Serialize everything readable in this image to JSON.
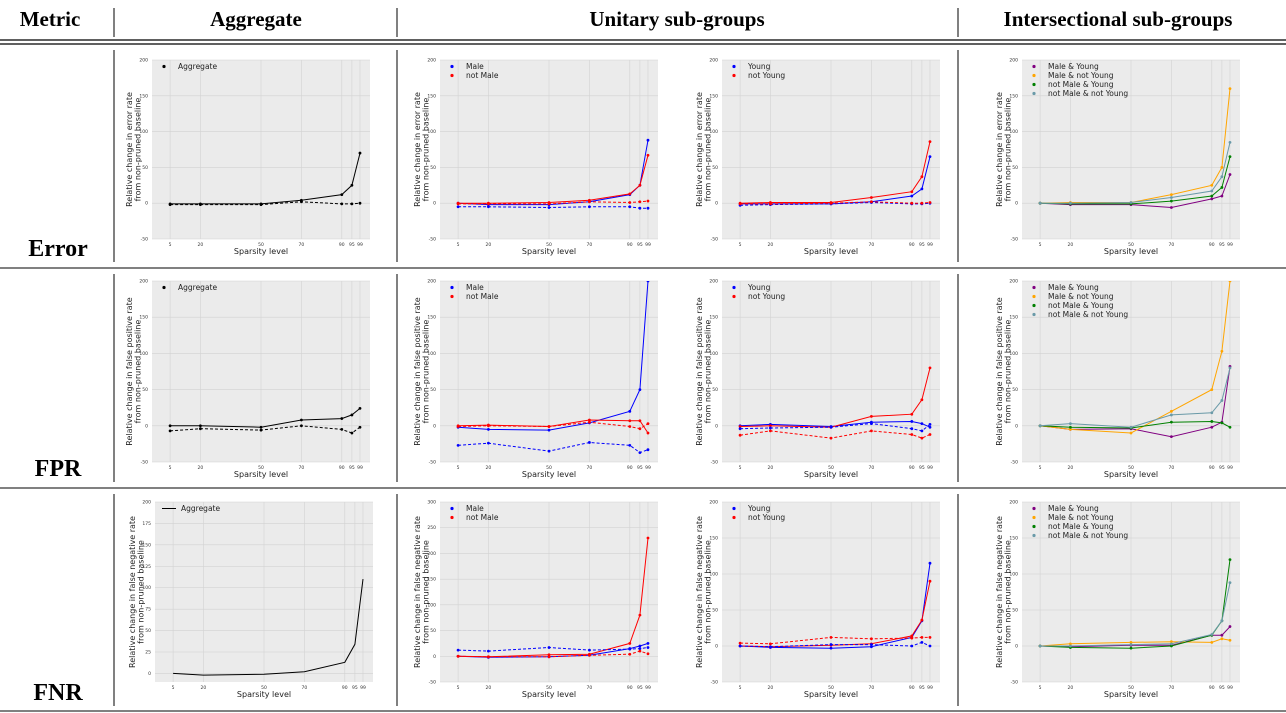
{
  "table": {
    "headers": [
      "Metric",
      "Aggregate",
      "Unitary sub-groups",
      "Intersectional sub-groups"
    ],
    "rows": [
      "Error",
      "FPR",
      "FNR"
    ]
  },
  "colors": {
    "Aggregate": "#000000",
    "Male": "#0000ff",
    "not Male": "#ff0000",
    "Young": "#0000ff",
    "not Young": "#ff0000",
    "Male & Young": "#800080",
    "Male & not Young": "#ffa500",
    "not Male & Young": "#008000",
    "not Male & not Young": "#6a9aa8"
  },
  "chart_data": [
    {
      "id": "error-aggregate",
      "type": "line",
      "xlabel": "Sparsity level",
      "ylabel": [
        "Relative change in error rate",
        "from non-pruned baseline"
      ],
      "x": [
        5,
        20,
        50,
        70,
        90,
        95,
        99
      ],
      "ylim": [
        -50,
        200
      ],
      "yticks": [
        -50,
        0,
        50,
        100,
        150,
        200
      ],
      "legend": "top-left",
      "grid": true,
      "series": [
        {
          "name": "Aggregate",
          "values": [
            -1,
            -1,
            -1,
            4,
            12,
            25,
            70
          ],
          "dashed": false,
          "marker": true,
          "legend": true
        },
        {
          "name": "Aggregate",
          "values": [
            -2,
            -2,
            -2,
            2,
            -1,
            -1,
            0
          ],
          "dashed": true,
          "marker": true,
          "legend": false
        }
      ]
    },
    {
      "id": "error-male",
      "type": "line",
      "xlabel": "Sparsity level",
      "ylabel": [
        "Relative change in error rate",
        "from non-pruned baseline"
      ],
      "x": [
        5,
        20,
        50,
        70,
        90,
        95,
        99
      ],
      "ylim": [
        -50,
        200
      ],
      "yticks": [
        -50,
        0,
        50,
        100,
        150,
        200
      ],
      "legend": "top-left",
      "grid": true,
      "series": [
        {
          "name": "Male",
          "values": [
            0,
            -2,
            -2,
            2,
            12,
            25,
            88
          ],
          "dashed": false,
          "marker": true,
          "legend": true
        },
        {
          "name": "not Male",
          "values": [
            0,
            0,
            1,
            4,
            13,
            25,
            67
          ],
          "dashed": false,
          "marker": true,
          "legend": true
        },
        {
          "name": "Male",
          "values": [
            -5,
            -5,
            -6,
            -5,
            -5,
            -7,
            -7
          ],
          "dashed": true,
          "marker": true,
          "legend": false
        },
        {
          "name": "not Male",
          "values": [
            -1,
            -1,
            -1,
            2,
            1,
            2,
            3
          ],
          "dashed": true,
          "marker": true,
          "legend": false
        }
      ]
    },
    {
      "id": "error-young",
      "type": "line",
      "xlabel": "Sparsity level",
      "ylabel": [
        "Relative change in error rate",
        "from non-pruned baseline"
      ],
      "x": [
        5,
        20,
        50,
        70,
        90,
        95,
        99
      ],
      "ylim": [
        -50,
        200
      ],
      "yticks": [
        -50,
        0,
        50,
        100,
        150,
        200
      ],
      "legend": "top-left",
      "grid": true,
      "series": [
        {
          "name": "Young",
          "values": [
            -1,
            -1,
            -1,
            2,
            10,
            20,
            65
          ],
          "dashed": false,
          "marker": true,
          "legend": true
        },
        {
          "name": "not Young",
          "values": [
            0,
            1,
            1,
            8,
            16,
            37,
            86
          ],
          "dashed": false,
          "marker": true,
          "legend": true
        },
        {
          "name": "Young",
          "values": [
            -3,
            -2,
            -1,
            1,
            -1,
            -1,
            0
          ],
          "dashed": true,
          "marker": true,
          "legend": false
        },
        {
          "name": "not Young",
          "values": [
            -1,
            -1,
            0,
            2,
            0,
            0,
            1
          ],
          "dashed": true,
          "marker": true,
          "legend": false
        }
      ]
    },
    {
      "id": "error-intersectional",
      "type": "line",
      "xlabel": "Sparsity level",
      "ylabel": [
        "Relative change in error rate",
        "from non-pruned baseline"
      ],
      "x": [
        5,
        20,
        50,
        70,
        90,
        95,
        99
      ],
      "ylim": [
        -50,
        200
      ],
      "yticks": [
        -50,
        0,
        50,
        100,
        150,
        200
      ],
      "legend": "top-left",
      "grid": true,
      "series": [
        {
          "name": "Male & Young",
          "values": [
            0,
            -2,
            -2,
            -6,
            6,
            10,
            40
          ],
          "dashed": false,
          "marker": true,
          "legend": true
        },
        {
          "name": "Male & not Young",
          "values": [
            0,
            1,
            1,
            12,
            25,
            50,
            160
          ],
          "dashed": false,
          "marker": true,
          "legend": true
        },
        {
          "name": "not Male & Young",
          "values": [
            0,
            -1,
            -1,
            3,
            10,
            22,
            65
          ],
          "dashed": false,
          "marker": true,
          "legend": true
        },
        {
          "name": "not Male & not Young",
          "values": [
            0,
            0,
            1,
            8,
            17,
            37,
            85
          ],
          "dashed": false,
          "marker": true,
          "legend": true
        }
      ]
    },
    {
      "id": "fpr-aggregate",
      "type": "line",
      "xlabel": "Sparsity level",
      "ylabel": [
        "Relative change in false positive rate",
        "from non-pruned baseline"
      ],
      "x": [
        5,
        20,
        50,
        70,
        90,
        95,
        99
      ],
      "ylim": [
        -50,
        200
      ],
      "yticks": [
        -50,
        0,
        50,
        100,
        150,
        200
      ],
      "legend": "top-left",
      "grid": true,
      "series": [
        {
          "name": "Aggregate",
          "values": [
            0,
            0,
            -2,
            8,
            10,
            15,
            24
          ],
          "dashed": false,
          "marker": true,
          "legend": true
        },
        {
          "name": "Aggregate",
          "values": [
            -7,
            -4,
            -6,
            0,
            -5,
            -10,
            -2
          ],
          "dashed": true,
          "marker": true,
          "legend": false
        }
      ]
    },
    {
      "id": "fpr-male",
      "type": "line",
      "xlabel": "Sparsity level",
      "ylabel": [
        "Relative change in false positive rate",
        "from non-pruned baseline"
      ],
      "x": [
        5,
        20,
        50,
        70,
        90,
        95,
        99
      ],
      "ylim": [
        -50,
        200
      ],
      "yticks": [
        -50,
        0,
        50,
        100,
        150,
        200
      ],
      "legend": "top-left",
      "grid": true,
      "series": [
        {
          "name": "Male",
          "values": [
            -2,
            -5,
            -6,
            4,
            20,
            50,
            200
          ],
          "dashed": false,
          "marker": true,
          "legend": true
        },
        {
          "name": "not Male",
          "values": [
            0,
            1,
            -1,
            8,
            7,
            7,
            -10
          ],
          "dashed": false,
          "marker": true,
          "legend": true
        },
        {
          "name": "Male",
          "values": [
            -27,
            -24,
            -35,
            -23,
            -27,
            -37,
            -33
          ],
          "dashed": true,
          "marker": true,
          "legend": false
        },
        {
          "name": "not Male",
          "values": [
            -1,
            0,
            -1,
            5,
            -1,
            -4,
            3
          ],
          "dashed": true,
          "marker": true,
          "legend": false
        }
      ]
    },
    {
      "id": "fpr-young",
      "type": "line",
      "xlabel": "Sparsity level",
      "ylabel": [
        "Relative change in false positive rate",
        "from non-pruned baseline"
      ],
      "x": [
        5,
        20,
        50,
        70,
        90,
        95,
        99
      ],
      "ylim": [
        -50,
        200
      ],
      "yticks": [
        -50,
        0,
        50,
        100,
        150,
        200
      ],
      "legend": "top-left",
      "grid": true,
      "series": [
        {
          "name": "Young",
          "values": [
            0,
            2,
            -1,
            5,
            6,
            3,
            -2
          ],
          "dashed": false,
          "marker": true,
          "legend": true
        },
        {
          "name": "not Young",
          "values": [
            -1,
            0,
            -2,
            13,
            16,
            36,
            80
          ],
          "dashed": false,
          "marker": true,
          "legend": true
        },
        {
          "name": "Young",
          "values": [
            -4,
            -3,
            -2,
            3,
            -4,
            -7,
            2
          ],
          "dashed": true,
          "marker": true,
          "legend": false
        },
        {
          "name": "not Young",
          "values": [
            -13,
            -7,
            -17,
            -7,
            -12,
            -17,
            -12
          ],
          "dashed": true,
          "marker": true,
          "legend": false
        }
      ]
    },
    {
      "id": "fpr-intersectional",
      "type": "line",
      "xlabel": "Sparsity level",
      "ylabel": [
        "Relative change in false positive rate",
        "from non-pruned baseline"
      ],
      "x": [
        5,
        20,
        50,
        70,
        90,
        95,
        99
      ],
      "ylim": [
        -50,
        200
      ],
      "yticks": [
        -50,
        0,
        50,
        100,
        150,
        200
      ],
      "legend": "top-left",
      "grid": true,
      "series": [
        {
          "name": "Male & Young",
          "values": [
            0,
            -5,
            -4,
            -15,
            -2,
            5,
            82
          ],
          "dashed": false,
          "marker": true,
          "legend": true
        },
        {
          "name": "Male & not Young",
          "values": [
            0,
            -5,
            -10,
            20,
            50,
            103,
            200
          ],
          "dashed": false,
          "marker": true,
          "legend": true
        },
        {
          "name": "not Male & Young",
          "values": [
            0,
            -2,
            -3,
            5,
            6,
            4,
            -2
          ],
          "dashed": false,
          "marker": true,
          "legend": true
        },
        {
          "name": "not Male & not Young",
          "values": [
            0,
            3,
            -2,
            15,
            18,
            35,
            80
          ],
          "dashed": false,
          "marker": true,
          "legend": true
        }
      ]
    },
    {
      "id": "fnr-aggregate",
      "type": "line",
      "xlabel": "Sparsity level",
      "ylabel": [
        "Relative change in false negative rate",
        "from non-pruned baseline"
      ],
      "x": [
        5,
        20,
        50,
        70,
        90,
        95,
        99
      ],
      "ylim": [
        -10,
        200
      ],
      "yticks": [
        0,
        25,
        50,
        75,
        100,
        125,
        150,
        175,
        200
      ],
      "legend": "top-left",
      "grid": true,
      "series": [
        {
          "name": "Aggregate",
          "values": [
            0,
            -2,
            -1,
            2,
            13,
            34,
            110
          ],
          "dashed": false,
          "marker": false,
          "legend": true
        }
      ]
    },
    {
      "id": "fnr-male",
      "type": "line",
      "xlabel": "Sparsity level",
      "ylabel": [
        "Relative change in false negative rate",
        "from non-pruned baseline"
      ],
      "x": [
        5,
        20,
        50,
        70,
        90,
        95,
        99
      ],
      "ylim": [
        -50,
        300
      ],
      "yticks": [
        -50,
        0,
        50,
        100,
        150,
        200,
        250,
        300
      ],
      "legend": "top-left",
      "grid": true,
      "series": [
        {
          "name": "Male",
          "values": [
            0,
            -2,
            -1,
            2,
            15,
            20,
            25
          ],
          "dashed": false,
          "marker": true,
          "legend": true
        },
        {
          "name": "not Male",
          "values": [
            0,
            -1,
            3,
            4,
            25,
            80,
            230
          ],
          "dashed": false,
          "marker": true,
          "legend": true
        },
        {
          "name": "Male",
          "values": [
            12,
            10,
            17,
            12,
            14,
            15,
            17
          ],
          "dashed": true,
          "marker": true,
          "legend": false
        },
        {
          "name": "not Male",
          "values": [
            0,
            -1,
            -1,
            2,
            4,
            10,
            5
          ],
          "dashed": true,
          "marker": true,
          "legend": false
        }
      ]
    },
    {
      "id": "fnr-young",
      "type": "line",
      "xlabel": "Sparsity level",
      "ylabel": [
        "Relative change in false negative rate",
        "from non-pruned baseline"
      ],
      "x": [
        5,
        20,
        50,
        70,
        90,
        95,
        99
      ],
      "ylim": [
        -50,
        200
      ],
      "yticks": [
        -50,
        0,
        50,
        100,
        150,
        200
      ],
      "legend": "top-left",
      "grid": true,
      "series": [
        {
          "name": "Young",
          "values": [
            0,
            -2,
            -3,
            -1,
            12,
            35,
            115
          ],
          "dashed": false,
          "marker": true,
          "legend": true
        },
        {
          "name": "not Young",
          "values": [
            0,
            -1,
            1,
            3,
            14,
            36,
            90
          ],
          "dashed": false,
          "marker": true,
          "legend": true
        },
        {
          "name": "Young",
          "values": [
            0,
            -1,
            2,
            2,
            0,
            5,
            0
          ],
          "dashed": true,
          "marker": true,
          "legend": false
        },
        {
          "name": "not Young",
          "values": [
            4,
            3,
            12,
            10,
            11,
            12,
            12
          ],
          "dashed": true,
          "marker": true,
          "legend": false
        }
      ]
    },
    {
      "id": "fnr-intersectional",
      "type": "line",
      "xlabel": "Sparsity level",
      "ylabel": [
        "Relative change in false negative rate",
        "from non-pruned baseline"
      ],
      "x": [
        5,
        20,
        50,
        70,
        90,
        95,
        99
      ],
      "ylim": [
        -50,
        200
      ],
      "yticks": [
        -50,
        0,
        50,
        100,
        150,
        200
      ],
      "legend": "top-left",
      "grid": true,
      "series": [
        {
          "name": "Male & Young",
          "values": [
            0,
            -1,
            1,
            1,
            15,
            15,
            27
          ],
          "dashed": false,
          "marker": true,
          "legend": true
        },
        {
          "name": "Male & not Young",
          "values": [
            0,
            3,
            5,
            6,
            5,
            10,
            8
          ],
          "dashed": false,
          "marker": true,
          "legend": true
        },
        {
          "name": "not Male & Young",
          "values": [
            0,
            -2,
            -3,
            0,
            15,
            35,
            120
          ],
          "dashed": false,
          "marker": true,
          "legend": true
        },
        {
          "name": "not Male & not Young",
          "values": [
            0,
            0,
            2,
            3,
            16,
            35,
            88
          ],
          "dashed": false,
          "marker": true,
          "legend": true
        }
      ]
    }
  ]
}
